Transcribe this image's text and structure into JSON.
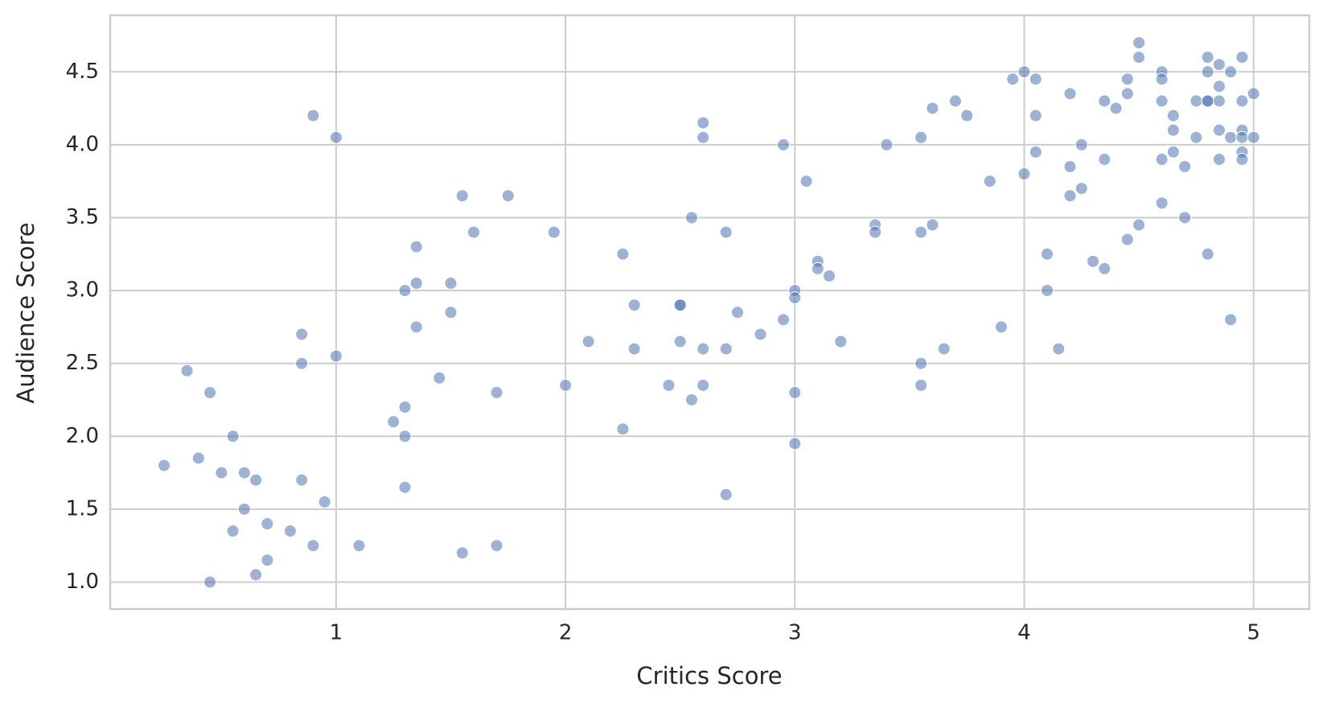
{
  "chart_data": {
    "type": "scatter",
    "xlabel": "Critics Score",
    "ylabel": "Audience Score",
    "color": "#4c72b0",
    "grid": true,
    "xlim": [
      0.015,
      5.243
    ],
    "ylim": [
      0.815,
      4.888
    ],
    "xticks": [
      1,
      2,
      3,
      4,
      5
    ],
    "yticks": [
      {
        "value": 1,
        "label": "1.0"
      },
      {
        "value": 1.5,
        "label": "1.5"
      },
      {
        "value": 2,
        "label": "2.0"
      },
      {
        "value": 2.5,
        "label": "2.5"
      },
      {
        "value": 3,
        "label": "3.0"
      },
      {
        "value": 3.5,
        "label": "3.5"
      },
      {
        "value": 4,
        "label": "4.0"
      },
      {
        "value": 4.5,
        "label": "4.5"
      }
    ],
    "x": [
      0.25,
      0.35,
      0.4,
      0.45,
      0.45,
      0.5,
      0.55,
      0.55,
      0.6,
      0.6,
      0.65,
      0.65,
      0.7,
      0.7,
      0.8,
      0.85,
      0.85,
      0.85,
      0.9,
      0.9,
      0.95,
      1.0,
      1.0,
      1.1,
      1.25,
      1.3,
      1.3,
      1.3,
      1.3,
      1.35,
      1.35,
      1.35,
      1.45,
      1.5,
      1.5,
      1.55,
      1.55,
      1.6,
      1.7,
      1.7,
      1.75,
      1.95,
      2.0,
      2.1,
      2.25,
      2.25,
      2.3,
      2.3,
      2.45,
      2.5,
      2.5,
      2.5,
      2.55,
      2.55,
      2.6,
      2.6,
      2.6,
      2.6,
      2.7,
      2.7,
      2.7,
      2.75,
      2.85,
      2.95,
      2.95,
      3.0,
      3.0,
      3.0,
      3.0,
      3.05,
      3.1,
      3.1,
      3.15,
      3.2,
      3.35,
      3.35,
      3.4,
      3.55,
      3.55,
      3.55,
      3.55,
      3.6,
      3.6,
      3.65,
      3.7,
      3.75,
      3.85,
      3.9,
      3.95,
      4.0,
      4.0,
      4.05,
      4.05,
      4.05,
      4.1,
      4.1,
      4.15,
      4.2,
      4.2,
      4.2,
      4.25,
      4.25,
      4.3,
      4.35,
      4.35,
      4.35,
      4.4,
      4.45,
      4.45,
      4.45,
      4.5,
      4.5,
      4.5,
      4.6,
      4.6,
      4.6,
      4.6,
      4.6,
      4.65,
      4.65,
      4.65,
      4.7,
      4.7,
      4.75,
      4.75,
      4.8,
      4.8,
      4.8,
      4.8,
      4.8,
      4.85,
      4.85,
      4.85,
      4.85,
      4.85,
      4.9,
      4.9,
      4.9,
      4.95,
      4.95,
      4.95,
      4.95,
      4.95,
      4.95,
      5.0,
      5.0
    ],
    "series": [
      {
        "values": [
          1.8,
          2.45,
          1.85,
          2.3,
          1.0,
          1.75,
          2.0,
          1.35,
          1.75,
          1.5,
          1.7,
          1.05,
          1.4,
          1.15,
          1.35,
          2.7,
          2.5,
          1.7,
          4.2,
          1.25,
          1.55,
          4.05,
          2.55,
          1.25,
          2.1,
          3.0,
          2.2,
          2.0,
          1.65,
          3.3,
          3.05,
          2.75,
          2.4,
          3.05,
          2.85,
          3.65,
          1.2,
          3.4,
          2.3,
          1.25,
          3.65,
          3.4,
          2.35,
          2.65,
          3.25,
          2.05,
          2.9,
          2.6,
          2.35,
          2.9,
          2.9,
          2.65,
          3.5,
          2.25,
          4.15,
          4.05,
          2.6,
          2.35,
          3.4,
          2.6,
          1.6,
          2.85,
          2.7,
          4.0,
          2.8,
          3.0,
          2.95,
          2.3,
          1.95,
          3.75,
          3.2,
          3.15,
          3.1,
          2.65,
          3.45,
          3.4,
          4.0,
          4.05,
          3.4,
          2.5,
          2.35,
          4.25,
          3.45,
          2.6,
          4.3,
          4.2,
          3.75,
          2.75,
          4.45,
          4.5,
          3.8,
          4.45,
          4.2,
          3.95,
          3.25,
          3.0,
          2.6,
          4.35,
          3.85,
          3.65,
          4.0,
          3.7,
          3.2,
          4.3,
          3.9,
          3.15,
          4.25,
          4.45,
          4.35,
          3.35,
          4.7,
          4.6,
          3.45,
          4.5,
          4.45,
          4.3,
          3.9,
          3.6,
          4.2,
          4.1,
          3.95,
          3.85,
          3.5,
          4.3,
          4.05,
          4.6,
          4.5,
          4.3,
          4.3,
          3.25,
          4.55,
          4.4,
          4.3,
          4.1,
          3.9,
          4.5,
          4.05,
          2.8,
          4.6,
          4.3,
          4.1,
          4.05,
          3.95,
          3.9,
          4.35,
          4.05
        ]
      }
    ]
  }
}
